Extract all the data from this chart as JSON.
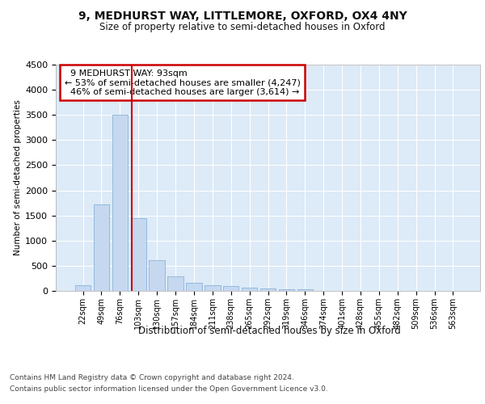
{
  "title1": "9, MEDHURST WAY, LITTLEMORE, OXFORD, OX4 4NY",
  "title2": "Size of property relative to semi-detached houses in Oxford",
  "xlabel": "Distribution of semi-detached houses by size in Oxford",
  "ylabel": "Number of semi-detached properties",
  "categories": [
    "22sqm",
    "49sqm",
    "76sqm",
    "103sqm",
    "130sqm",
    "157sqm",
    "184sqm",
    "211sqm",
    "238sqm",
    "265sqm",
    "292sqm",
    "319sqm",
    "346sqm",
    "374sqm",
    "401sqm",
    "428sqm",
    "455sqm",
    "482sqm",
    "509sqm",
    "536sqm",
    "563sqm"
  ],
  "values": [
    120,
    1720,
    3500,
    1440,
    610,
    290,
    155,
    105,
    90,
    60,
    55,
    35,
    30,
    0,
    0,
    0,
    0,
    0,
    0,
    0,
    0
  ],
  "bar_color": "#c5d8f0",
  "bar_edgecolor": "#8ab4d8",
  "property_label": "9 MEDHURST WAY: 93sqm",
  "pct_smaller": 53,
  "pct_larger": 46,
  "n_smaller": 4247,
  "n_larger": 3614,
  "annotation_box_facecolor": "#ffffff",
  "annotation_box_edgecolor": "#cc0000",
  "ylim": [
    0,
    4500
  ],
  "plot_bg_color": "#ddeaf7",
  "grid_color": "#ffffff",
  "footer1": "Contains HM Land Registry data © Crown copyright and database right 2024.",
  "footer2": "Contains public sector information licensed under the Open Government Licence v3.0."
}
